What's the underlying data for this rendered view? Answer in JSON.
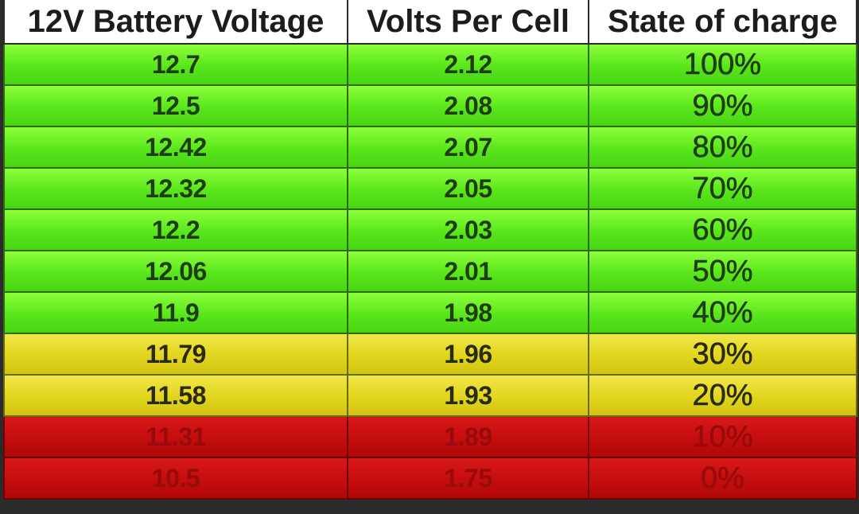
{
  "table": {
    "headers": [
      "12V Battery Voltage",
      "Volts Per Cell",
      "State of charge"
    ],
    "rows": [
      {
        "voltage": "12.7",
        "per_cell": "2.12",
        "charge": "100%",
        "band": "green"
      },
      {
        "voltage": "12.5",
        "per_cell": "2.08",
        "charge": "90%",
        "band": "green"
      },
      {
        "voltage": "12.42",
        "per_cell": "2.07",
        "charge": "80%",
        "band": "green"
      },
      {
        "voltage": "12.32",
        "per_cell": "2.05",
        "charge": "70%",
        "band": "green"
      },
      {
        "voltage": "12.2",
        "per_cell": "2.03",
        "charge": "60%",
        "band": "green"
      },
      {
        "voltage": "12.06",
        "per_cell": "2.01",
        "charge": "50%",
        "band": "green"
      },
      {
        "voltage": "11.9",
        "per_cell": "1.98",
        "charge": "40%",
        "band": "green"
      },
      {
        "voltage": "11.79",
        "per_cell": "1.96",
        "charge": "30%",
        "band": "yellow"
      },
      {
        "voltage": "11.58",
        "per_cell": "1.93",
        "charge": "20%",
        "band": "yellow"
      },
      {
        "voltage": "11.31",
        "per_cell": "1.89",
        "charge": "10%",
        "band": "red"
      },
      {
        "voltage": "10.5",
        "per_cell": "1.75",
        "charge": "0%",
        "band": "red"
      }
    ]
  },
  "colors": {
    "green": "#5ae61c",
    "yellow": "#e2d51c",
    "red": "#c40e0e",
    "header_bg": "#ffffff"
  }
}
